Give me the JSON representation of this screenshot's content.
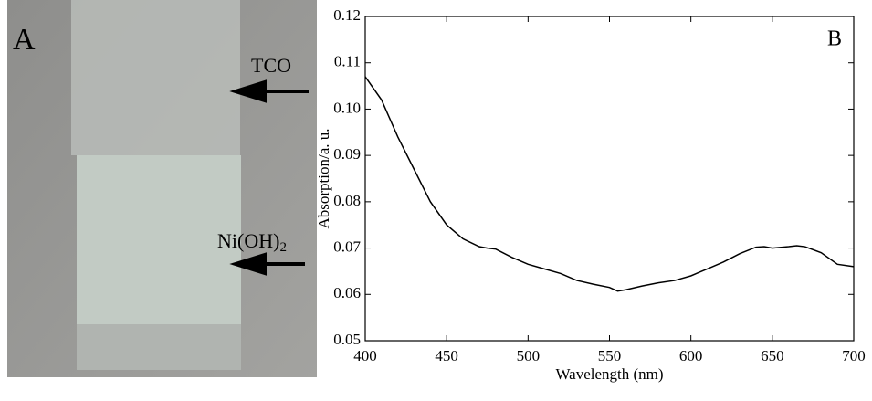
{
  "photo": {
    "panel_label": "A",
    "arrow_labels": [
      {
        "text": "TCO"
      },
      {
        "text": "Ni(OH)",
        "subscript": "2"
      }
    ]
  },
  "chart_data": {
    "type": "line",
    "panel_label": "B",
    "x_label": "Wavelength (nm)",
    "y_label": "Absorption/a. u.",
    "x": [
      400,
      410,
      420,
      430,
      440,
      450,
      460,
      470,
      475,
      480,
      490,
      500,
      510,
      520,
      530,
      540,
      550,
      555,
      560,
      570,
      580,
      590,
      600,
      610,
      620,
      630,
      640,
      645,
      650,
      660,
      665,
      670,
      680,
      690,
      700
    ],
    "series": [
      {
        "color": "#000000",
        "values": [
          0.107,
          0.102,
          0.094,
          0.087,
          0.08,
          0.075,
          0.072,
          0.0703,
          0.07,
          0.0698,
          0.068,
          0.0665,
          0.0655,
          0.0645,
          0.063,
          0.0622,
          0.0615,
          0.0607,
          0.061,
          0.0618,
          0.0625,
          0.063,
          0.064,
          0.0655,
          0.067,
          0.0688,
          0.0702,
          0.0703,
          0.07,
          0.0703,
          0.0705,
          0.0703,
          0.069,
          0.0665,
          0.066
        ]
      }
    ],
    "xlim": [
      400,
      700
    ],
    "xticks": [
      400,
      450,
      500,
      550,
      600,
      650,
      700
    ],
    "ylim": [
      0.05,
      0.12
    ],
    "yticks": [
      0.05,
      0.06,
      0.07,
      0.08,
      0.09,
      {
        "value": 0.1,
        "label": "0.10"
      },
      0.11,
      0.12
    ]
  }
}
